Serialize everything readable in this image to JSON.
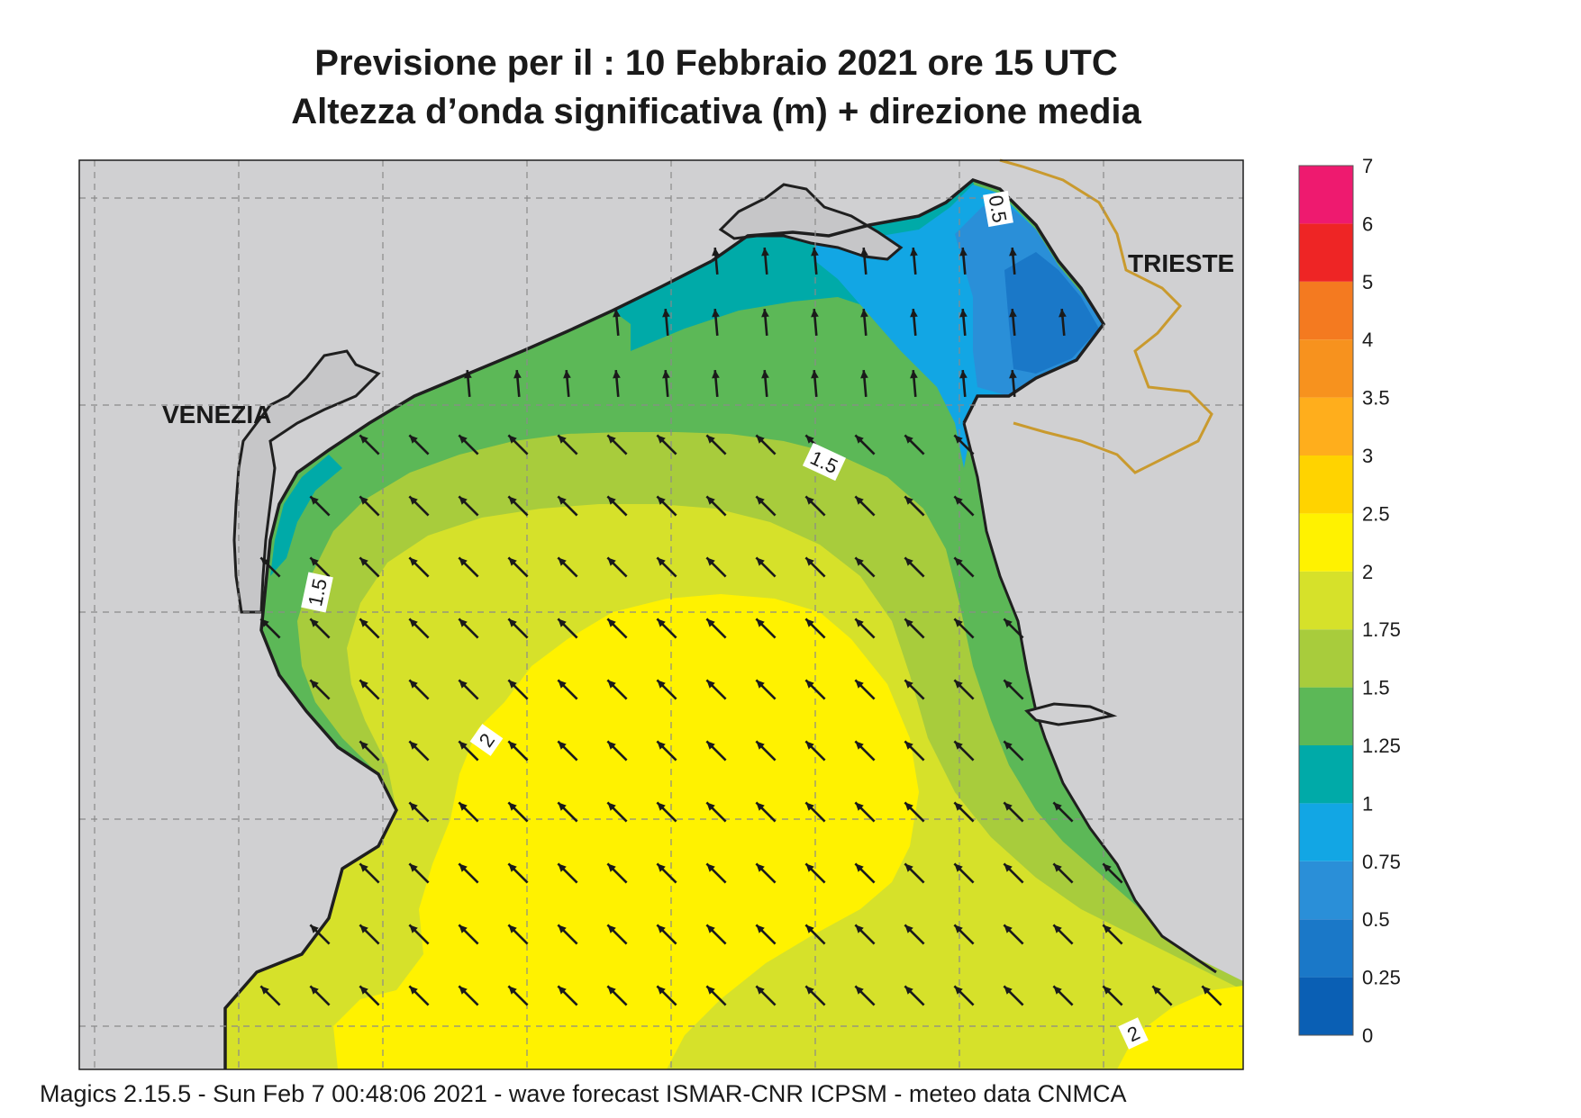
{
  "title_line1": "Previsione per il  :  10  Febbraio 2021   ore 15 UTC",
  "title_line2": "Altezza d’onda significativa (m) + direzione media",
  "footer": "Magics 2.15.5 - Sun Feb  7 00:48:06 2021 - wave forecast  ISMAR-CNR  ICPSM - meteo data   CNMCA",
  "places": {
    "venezia": "VENEZIA",
    "trieste": "TRIESTE"
  },
  "contour_labels": [
    "0.5",
    "1.5",
    "1.5",
    "2",
    "2"
  ],
  "legend": {
    "levels": [
      "0",
      "0.25",
      "0.5",
      "0.75",
      "1",
      "1.25",
      "1.5",
      "1.75",
      "2",
      "2.5",
      "3",
      "3.5",
      "4",
      "5",
      "6",
      "7"
    ],
    "colors": [
      "#0a5fb4",
      "#1a78c8",
      "#2a8fd8",
      "#12a6e4",
      "#00aaa8",
      "#5cb857",
      "#a8cc3c",
      "#d6e12a",
      "#fff200",
      "#ffd300",
      "#ffae1c",
      "#f7921e",
      "#f47a20",
      "#ee2525",
      "#ee1a6f"
    ]
  },
  "colors": {
    "land": "#d0d0d2",
    "coast": "#1f1f1f",
    "border": "#c99a2e",
    "arrow": "#1a1a1a"
  },
  "mean_direction": "NW"
}
